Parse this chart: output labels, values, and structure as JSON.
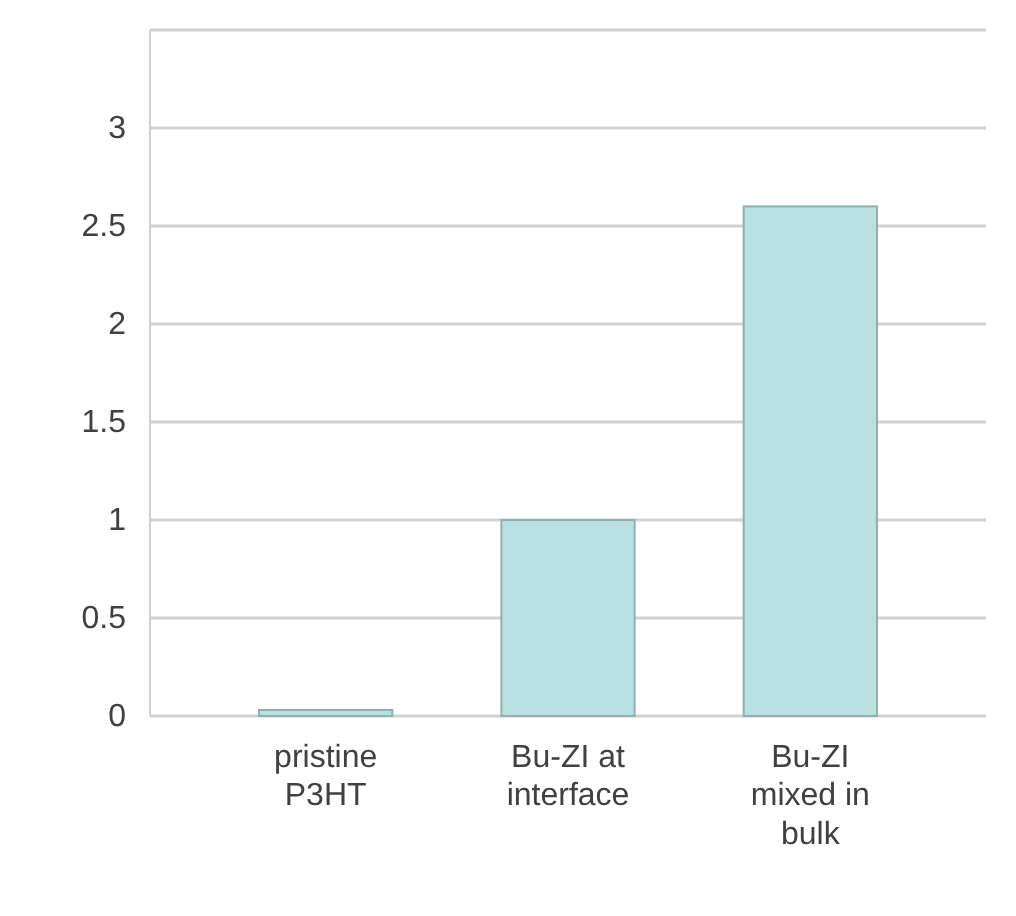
{
  "chart_data": {
    "type": "bar",
    "categories": [
      "pristine P3HT",
      "Bu-ZI at interface",
      "Bu-ZI mixed in bulk"
    ],
    "values": [
      0,
      1.0,
      2.6
    ],
    "color": "#b9e1e1",
    "ylim": [
      0,
      3.5
    ],
    "yticks": [
      0,
      0.5,
      1,
      1.5,
      2,
      2.5,
      3,
      {
        "value": 3.5,
        "label": null
      }
    ],
    "grid": true
  }
}
